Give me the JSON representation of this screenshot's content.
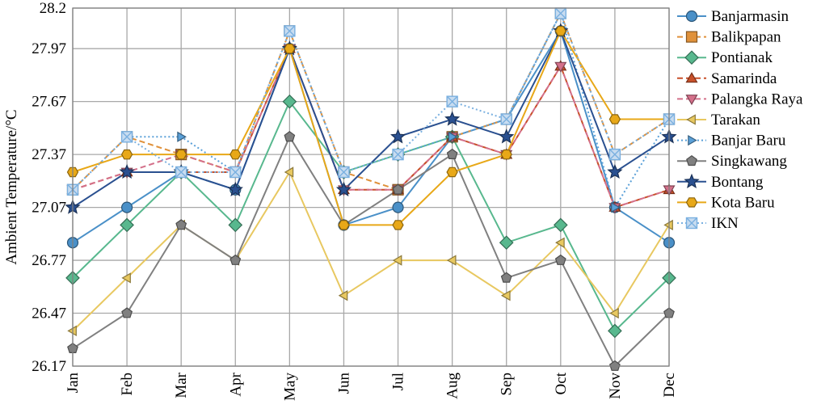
{
  "chart_data": {
    "type": "line",
    "title": "",
    "xlabel": "",
    "ylabel": "Ambient Temperature/°C",
    "categories": [
      "Jan",
      "Feb",
      "Mar",
      "Apr",
      "May",
      "Jun",
      "Jul",
      "Aug",
      "Sep",
      "Oct",
      "Nov",
      "Dec"
    ],
    "y_ticks": [
      "26.17",
      "26.47",
      "26.77",
      "27.07",
      "27.37",
      "27.67",
      "27.97",
      "28.2"
    ],
    "ylim": [
      26.17,
      28.2
    ],
    "grid": true,
    "legend_position": "right",
    "series": [
      {
        "name": "Banjarmasin",
        "color": "#4a90c8",
        "marker": "circle",
        "dash": "solid",
        "values": [
          26.87,
          27.07,
          27.27,
          27.17,
          27.97,
          26.97,
          27.07,
          27.47,
          27.57,
          28.07,
          27.07,
          26.87
        ]
      },
      {
        "name": "Balikpapan",
        "color": "#e0913a",
        "marker": "square",
        "dash": "dash",
        "values": [
          27.17,
          27.47,
          27.37,
          27.27,
          28.07,
          27.27,
          27.17,
          27.47,
          27.57,
          28.17,
          27.37,
          27.57
        ]
      },
      {
        "name": "Pontianak",
        "color": "#58b88e",
        "marker": "diamond",
        "dash": "solid",
        "values": [
          26.67,
          26.97,
          27.27,
          26.97,
          27.67,
          27.27,
          27.37,
          27.47,
          26.87,
          26.97,
          26.37,
          26.67
        ]
      },
      {
        "name": "Samarinda",
        "color": "#c8502a",
        "marker": "triangle-up",
        "dash": "dash",
        "values": [
          27.17,
          27.27,
          27.27,
          27.27,
          27.97,
          27.17,
          27.17,
          27.47,
          27.37,
          27.87,
          27.07,
          27.17
        ]
      },
      {
        "name": "Palangka Raya",
        "color": "#d4708a",
        "marker": "triangle-down",
        "dash": "dash",
        "values": [
          27.17,
          27.27,
          27.37,
          27.27,
          27.97,
          27.17,
          27.17,
          27.47,
          27.37,
          27.87,
          27.07,
          27.17
        ]
      },
      {
        "name": "Tarakan",
        "color": "#e8c860",
        "marker": "triangle-left",
        "dash": "solid",
        "values": [
          26.37,
          26.67,
          26.97,
          26.77,
          27.27,
          26.57,
          26.77,
          26.77,
          26.57,
          26.87,
          26.47,
          26.97
        ]
      },
      {
        "name": "Banjar Baru",
        "color": "#5aa0d8",
        "marker": "triangle-right",
        "dash": "dot",
        "values": [
          27.17,
          27.47,
          27.47,
          27.27,
          28.07,
          27.27,
          27.37,
          27.47,
          27.57,
          28.17,
          27.07,
          27.57
        ]
      },
      {
        "name": "Singkawang",
        "color": "#808080",
        "marker": "pentagon",
        "dash": "solid",
        "values": [
          26.27,
          26.47,
          26.97,
          26.77,
          27.47,
          26.97,
          27.17,
          27.37,
          26.67,
          26.77,
          26.17,
          26.47
        ]
      },
      {
        "name": "Bontang",
        "color": "#2a5090",
        "marker": "star",
        "dash": "solid",
        "values": [
          27.07,
          27.27,
          27.27,
          27.17,
          27.97,
          27.17,
          27.47,
          27.57,
          27.47,
          28.07,
          27.27,
          27.47
        ]
      },
      {
        "name": "Kota Baru",
        "color": "#e8a818",
        "marker": "hexagon",
        "dash": "solid",
        "values": [
          27.27,
          27.37,
          27.37,
          27.37,
          27.97,
          26.97,
          26.97,
          27.27,
          27.37,
          28.07,
          27.57,
          27.57
        ]
      },
      {
        "name": "IKN",
        "color": "#7ab0e0",
        "marker": "x-square",
        "dash": "dot",
        "values": [
          27.17,
          27.47,
          27.27,
          27.27,
          28.07,
          27.27,
          27.37,
          27.67,
          27.57,
          28.17,
          27.37,
          27.57
        ]
      }
    ]
  }
}
